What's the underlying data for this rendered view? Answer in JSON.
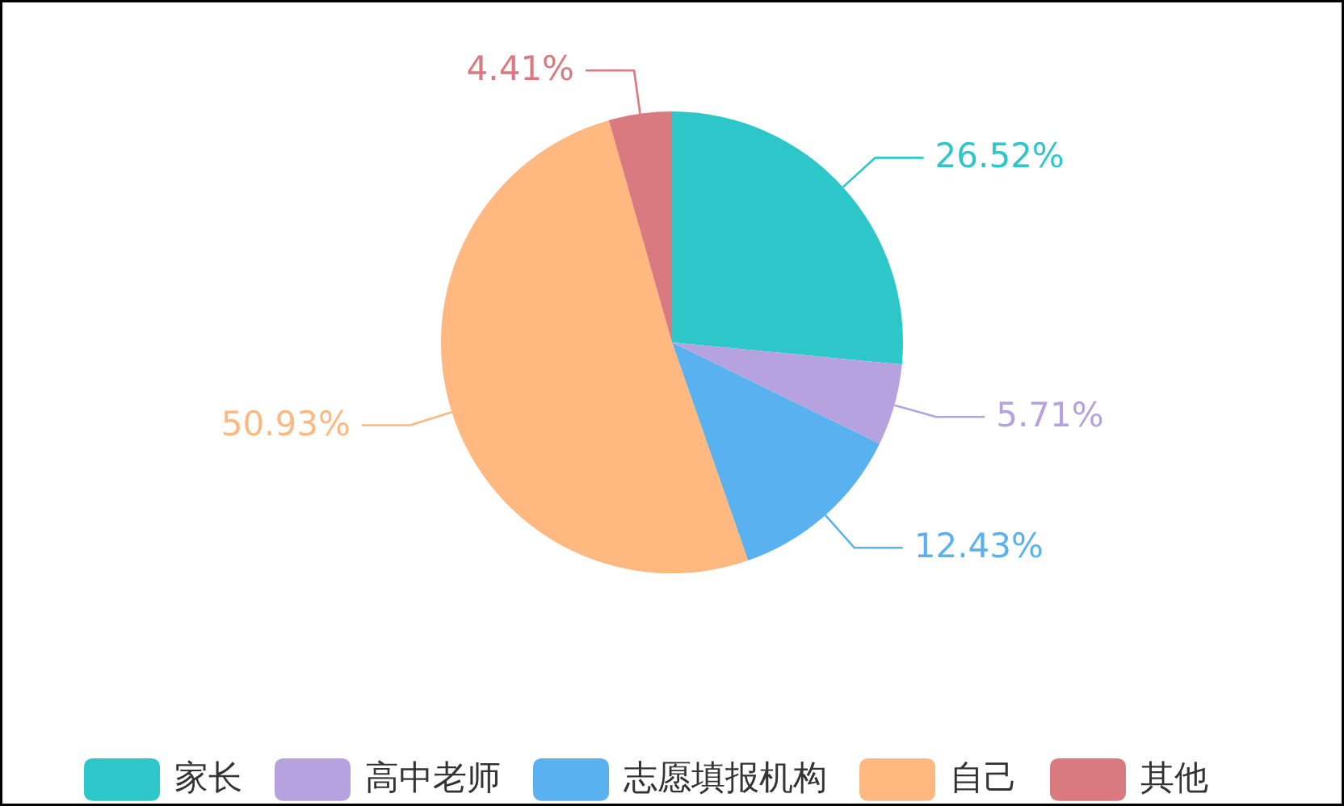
{
  "chart_data": {
    "type": "pie",
    "categories": [
      "家长",
      "高中老师",
      "志愿填报机构",
      "自己",
      "其他"
    ],
    "values": [
      26.52,
      5.71,
      12.43,
      50.93,
      4.41
    ],
    "colors": [
      "#2ec7c9",
      "#b6a2de",
      "#5ab1ef",
      "#ffb980",
      "#d87a80"
    ],
    "value_labels": [
      "26.52%",
      "5.71%",
      "12.43%",
      "50.93%",
      "4.41%"
    ],
    "legend": "bottom"
  }
}
